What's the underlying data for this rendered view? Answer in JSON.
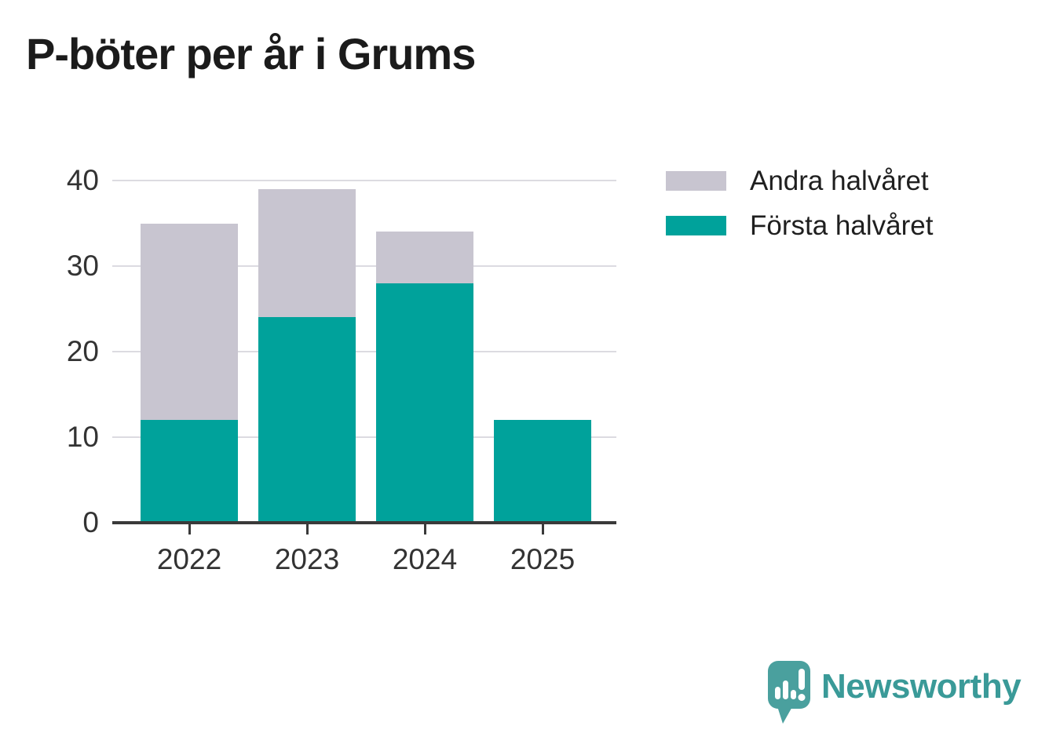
{
  "title": "P-böter per år i Grums",
  "chart_data": {
    "type": "bar",
    "stacked": true,
    "title": "P-böter per år i Grums",
    "categories": [
      "2022",
      "2023",
      "2024",
      "2025"
    ],
    "series": [
      {
        "name": "Första halvåret",
        "color": "#00a29b",
        "values": [
          12,
          24,
          28,
          12
        ]
      },
      {
        "name": "Andra halvåret",
        "color": "#c8c5d0",
        "values": [
          23,
          15,
          6,
          0
        ]
      }
    ],
    "totals": [
      35,
      39,
      34,
      12
    ],
    "xlabel": "",
    "ylabel": "",
    "ylim": [
      0,
      40
    ],
    "yticks": [
      0,
      10,
      20,
      30,
      40
    ],
    "grid": true,
    "legend_position": "right-top",
    "legend": [
      {
        "label": "Andra halvåret",
        "color": "#c8c5d0"
      },
      {
        "label": "Första halvåret",
        "color": "#00a29b"
      }
    ]
  },
  "colors": {
    "first_half_teal": "#00a29b",
    "second_half_gray": "#c8c5d0",
    "gridline": "#dcdbe1",
    "axis": "#3a3a3a",
    "tick_text": "#333333",
    "title_text": "#1b1b1b"
  },
  "branding": {
    "logo_text": "Newsworthy",
    "logo_text_color": "#3a9a98",
    "logo_icon_color": "#4aa09e",
    "logo_icon": "newsworthy-speech-bubble-chart-icon"
  }
}
